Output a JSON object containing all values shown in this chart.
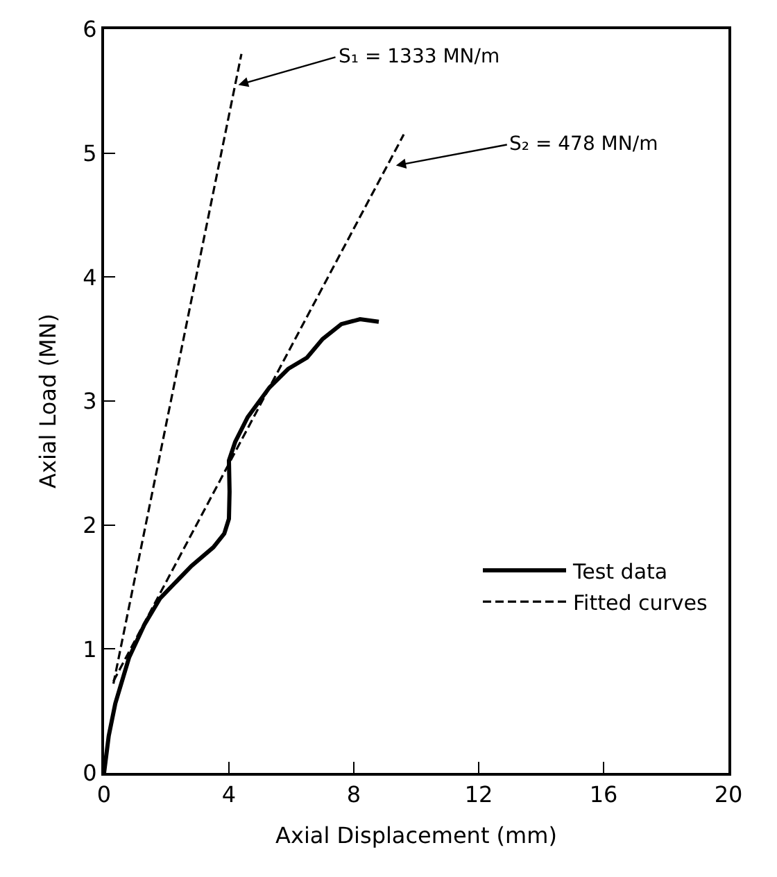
{
  "chart_data": {
    "type": "line",
    "xlabel": "Axial Displacement (mm)",
    "ylabel": "Axial Load (MN)",
    "xlim": [
      0,
      20
    ],
    "xticks": [
      0,
      4,
      8,
      12,
      16,
      20
    ],
    "ylim": [
      0,
      6
    ],
    "yticks": [
      0,
      1,
      2,
      3,
      4,
      5,
      6
    ],
    "grid": false,
    "legend": "bottom right",
    "marker": "none",
    "series": [
      {
        "name": "Test data",
        "color": "#000000",
        "line_style": "solid",
        "x": [
          0,
          0.15,
          0.36,
          0.8,
          1.3,
          1.8,
          2.8,
          3.5,
          3.85,
          4.0,
          4.02,
          4.0,
          4.2,
          4.6,
          5.3,
          5.9,
          6.5,
          7.0,
          7.6,
          8.2,
          8.8
        ],
        "values": [
          0,
          0.3,
          0.56,
          0.93,
          1.2,
          1.41,
          1.67,
          1.82,
          1.93,
          2.05,
          2.27,
          2.52,
          2.67,
          2.87,
          3.11,
          3.26,
          3.35,
          3.5,
          3.62,
          3.66,
          3.64
        ]
      },
      {
        "name": "Fitted curves",
        "color": "#000000",
        "line_style": "dashed",
        "x": [
          0.3,
          4.4
        ],
        "values": [
          0.72,
          5.8
        ]
      },
      {
        "color": "#000000",
        "line_style": "dashed",
        "x": [
          0.3,
          9.6
        ],
        "values": [
          0.74,
          5.15
        ]
      }
    ],
    "annotations": [
      {
        "text": "S₁ = 1333 MN/m",
        "x": 4.3,
        "y": 5.55
      },
      {
        "text": "S₂ = 478 MN/m",
        "x": 9.35,
        "y": 4.9
      }
    ]
  }
}
